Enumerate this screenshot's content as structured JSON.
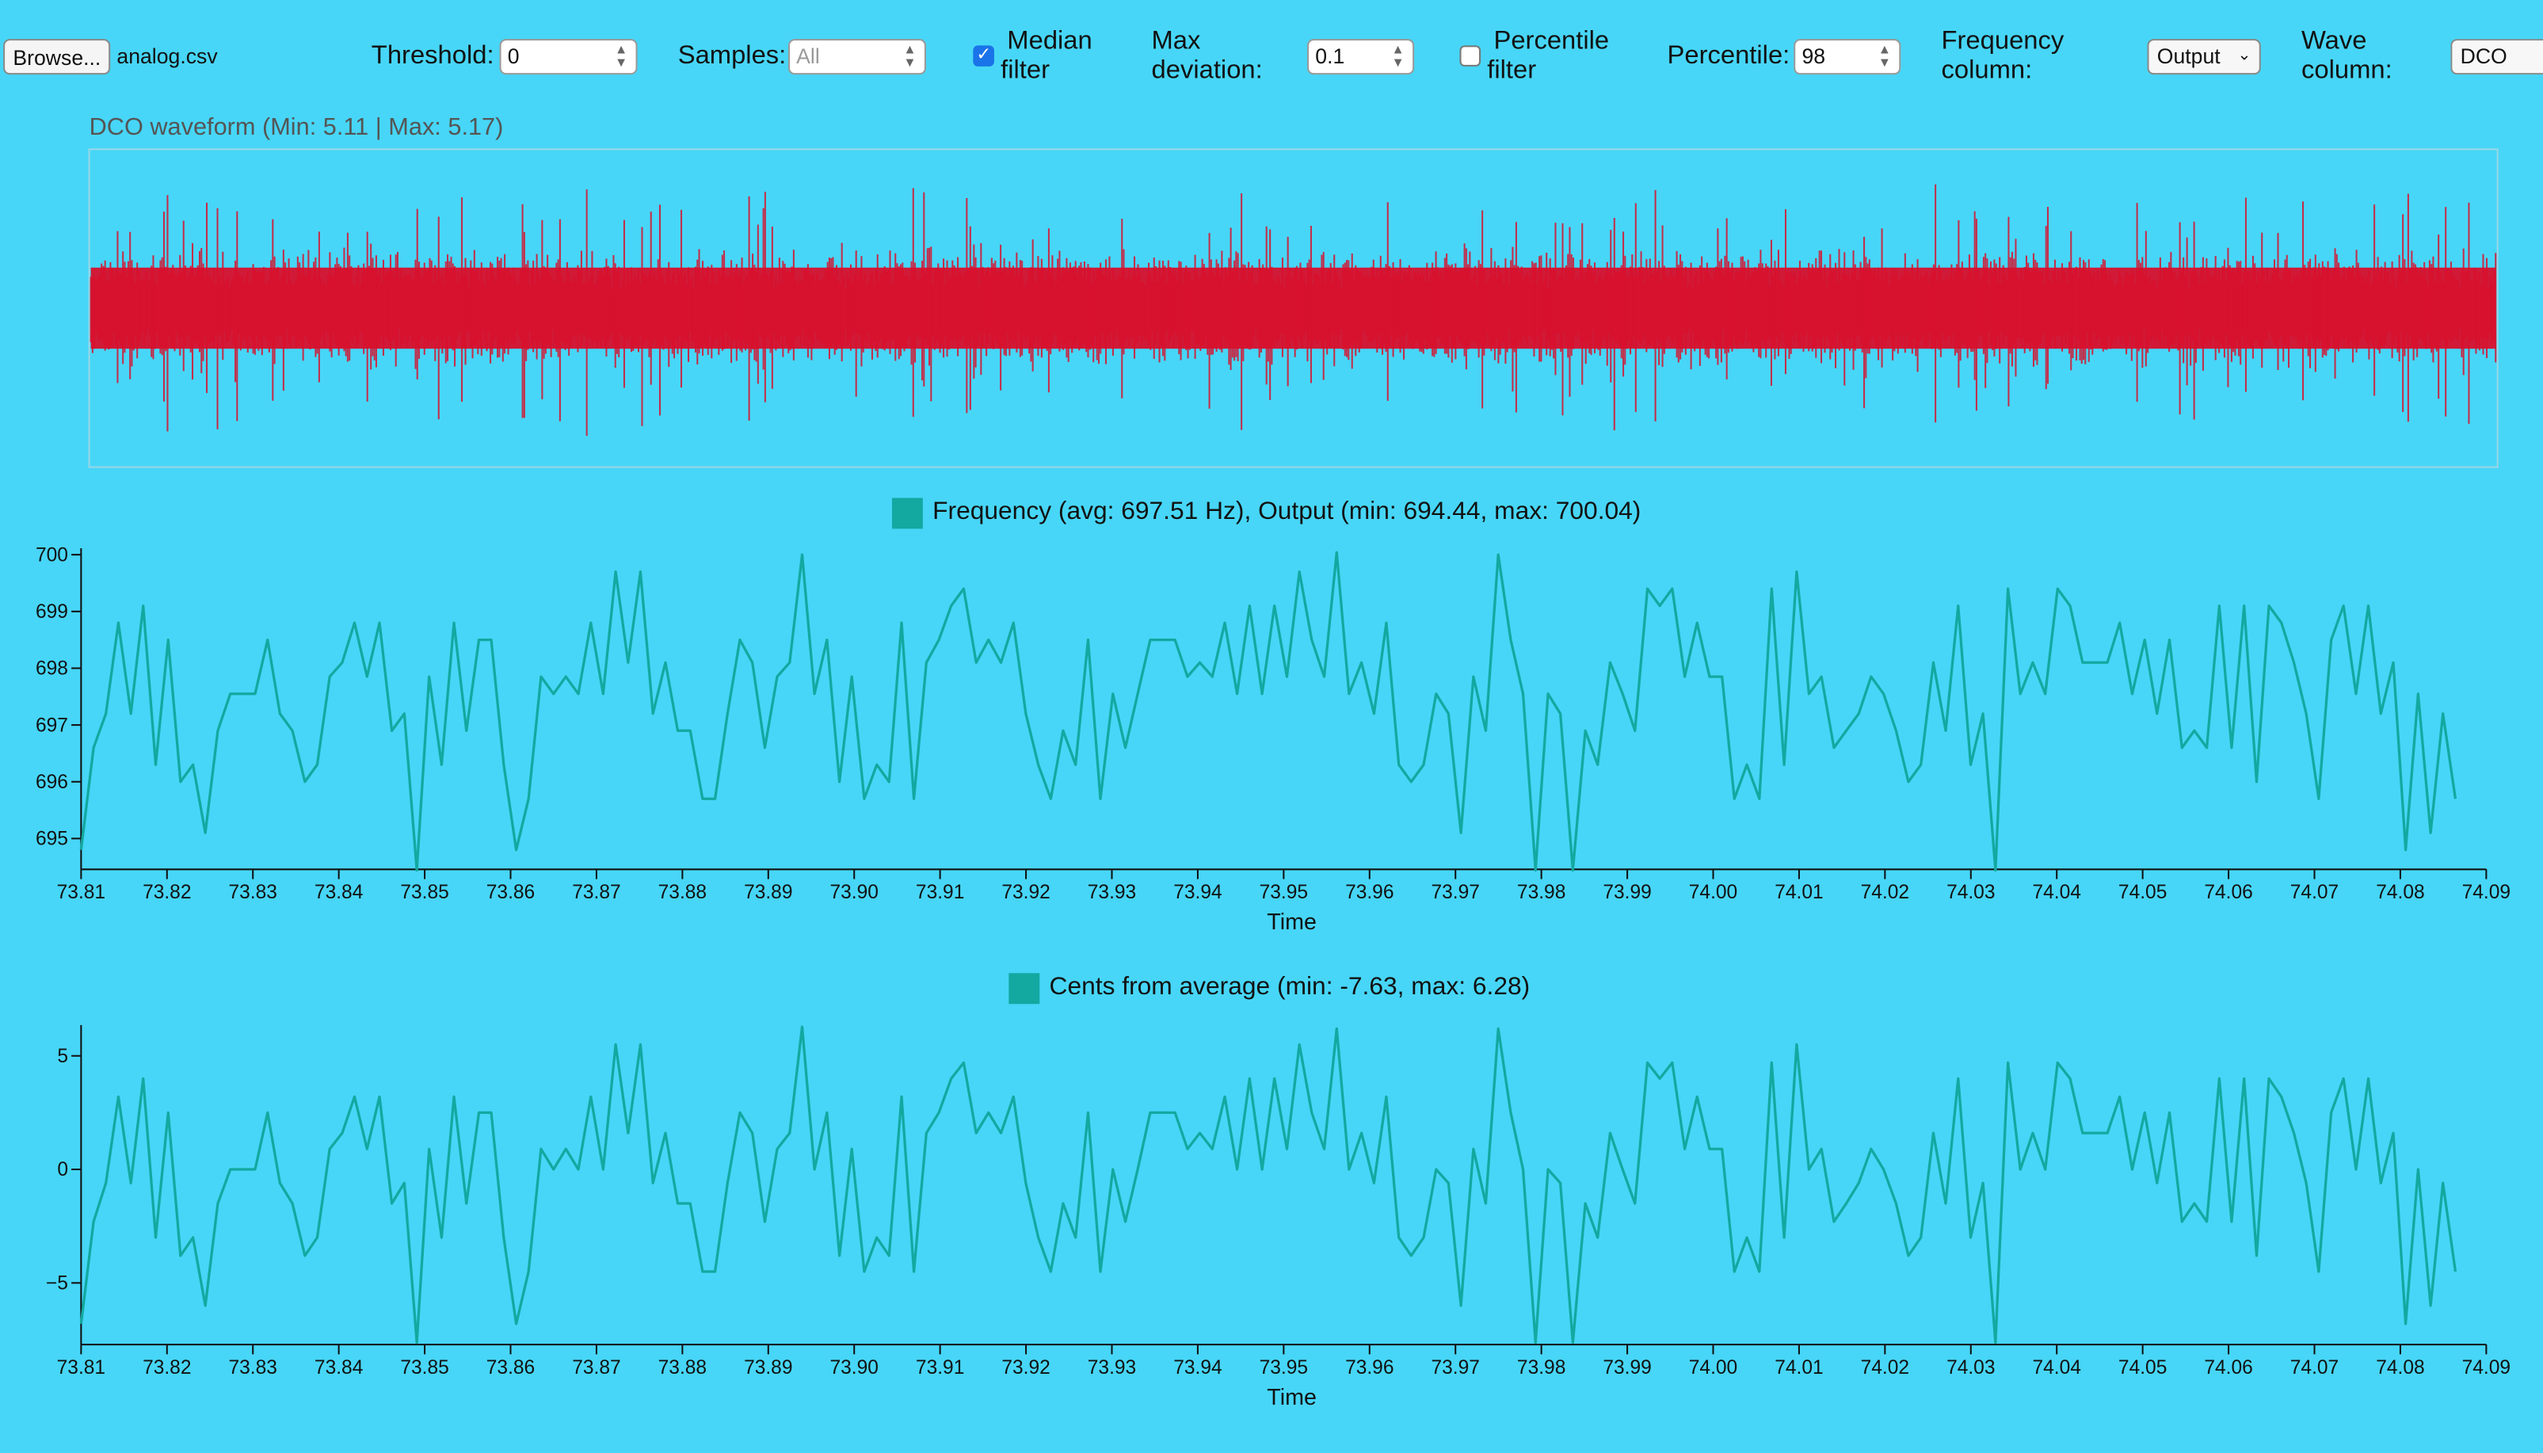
{
  "toolbar": {
    "browse_label": "Browse...",
    "file_name": "analog.csv",
    "threshold_label": "Threshold:",
    "threshold_value": "0",
    "samples_label": "Samples:",
    "samples_value": "All",
    "median_label_1": "Median",
    "median_label_2": "filter",
    "max_dev_label_1": "Max",
    "max_dev_label_2": "deviation:",
    "max_dev_value": "0.1",
    "percentile_filter_label_1": "Percentile",
    "percentile_filter_label_2": "filter",
    "percentile_label": "Percentile:",
    "percentile_value": "98",
    "freq_col_label_1": "Frequency",
    "freq_col_label_2": "column:",
    "freq_col_value": "Output",
    "wave_col_label_1": "Wave",
    "wave_col_label_2": "column:",
    "wave_col_value": "DCO",
    "median_checked": true,
    "percentile_checked": false
  },
  "waveform": {
    "title": "DCO waveform (Min: 5.11  |  Max: 5.17)",
    "color": "#d8102c",
    "min": 5.11,
    "max": 5.17
  },
  "frequency_chart": {
    "legend": "Frequency (avg: 697.51 Hz), Output (min: 694.44, max: 700.04)",
    "color": "#13a8a0",
    "xlabel": "Time",
    "yticks": [
      "700",
      "699",
      "698",
      "697",
      "696",
      "695"
    ],
    "xticks": [
      "73.81",
      "73.82",
      "73.83",
      "73.84",
      "73.85",
      "73.86",
      "73.87",
      "73.88",
      "73.89",
      "73.90",
      "73.91",
      "73.92",
      "73.93",
      "73.94",
      "73.95",
      "73.96",
      "73.97",
      "73.98",
      "73.99",
      "74.00",
      "74.01",
      "74.02",
      "74.03",
      "74.04",
      "74.05",
      "74.06",
      "74.07",
      "74.08",
      "74.09"
    ]
  },
  "cents_chart": {
    "legend": "Cents from average (min: -7.63, max: 6.28)",
    "color": "#13a8a0",
    "xlabel": "Time",
    "yticks": [
      "5",
      "0",
      "−5"
    ],
    "xticks": [
      "73.81",
      "73.82",
      "73.83",
      "73.84",
      "73.85",
      "73.86",
      "73.87",
      "73.88",
      "73.89",
      "73.90",
      "73.91",
      "73.92",
      "73.93",
      "73.94",
      "73.95",
      "73.96",
      "73.97",
      "73.98",
      "73.99",
      "74.00",
      "74.01",
      "74.02",
      "74.03",
      "74.04",
      "74.05",
      "74.06",
      "74.07",
      "74.08",
      "74.09"
    ]
  },
  "chart_data": [
    {
      "type": "line",
      "title": "Frequency (avg: 697.51 Hz), Output (min: 694.44, max: 700.04)",
      "xlabel": "Time",
      "ylabel": "",
      "xlim": [
        73.81,
        74.09
      ],
      "ylim": [
        694.44,
        700.04
      ],
      "series": [
        {
          "name": "Frequency",
          "values": [
            694.8,
            696.6,
            697.2,
            698.8,
            697.2,
            699.1,
            696.3,
            698.5,
            696.0,
            696.3,
            695.1,
            696.9,
            697.55,
            697.55,
            697.55,
            698.5,
            697.2,
            696.9,
            696.0,
            696.3,
            697.85,
            698.1,
            698.8,
            697.85,
            698.8,
            696.9,
            697.2,
            694.44,
            697.85,
            696.3,
            698.8,
            696.9,
            698.5,
            698.5,
            696.3,
            694.8,
            695.7,
            697.85,
            697.55,
            697.85,
            697.55,
            698.8,
            697.55,
            699.7,
            698.1,
            699.7,
            697.2,
            698.1,
            696.9,
            696.9,
            695.7,
            695.7,
            697.2,
            698.5,
            698.1,
            696.6,
            697.85,
            698.1,
            700.0,
            697.55,
            698.5,
            696.0,
            697.85,
            695.7,
            696.3,
            696.0,
            698.8,
            695.7,
            698.1,
            698.5,
            699.1,
            699.4,
            698.1,
            698.5,
            698.1,
            698.8,
            697.2,
            696.3,
            695.7,
            696.9,
            696.3,
            698.5,
            695.7,
            697.55,
            696.6,
            697.55,
            698.5,
            698.5,
            698.5,
            697.85,
            698.1,
            697.85,
            698.8,
            697.55,
            699.1,
            697.55,
            699.1,
            697.85,
            699.7,
            698.5,
            697.85,
            700.04,
            697.55,
            698.1,
            697.2,
            698.8,
            696.3,
            696.0,
            696.3,
            697.55,
            697.2,
            695.1,
            697.85,
            696.9,
            700.0,
            698.5,
            697.55,
            694.44,
            697.55,
            697.2,
            694.44,
            696.9,
            696.3,
            698.1,
            697.55,
            696.9,
            699.4,
            699.1,
            699.4,
            697.85,
            698.8,
            697.85,
            697.85,
            695.7,
            696.3,
            695.7,
            699.4,
            696.3,
            699.7,
            697.55,
            697.85,
            696.6,
            696.9,
            697.2,
            697.85,
            697.55,
            696.9,
            696.0,
            696.3,
            698.1,
            696.9,
            699.1,
            696.3,
            697.2,
            694.44,
            699.4,
            697.55,
            698.1,
            697.55,
            699.4,
            699.1,
            698.1,
            698.1,
            698.1,
            698.8,
            697.55,
            698.5,
            697.2,
            698.5,
            696.6,
            696.9,
            696.6,
            699.1,
            696.6,
            699.1,
            696.0,
            699.1,
            698.8,
            698.1,
            697.2,
            695.7,
            698.5,
            699.1,
            697.55,
            699.1,
            697.2,
            698.1,
            694.8,
            697.55,
            695.1,
            697.2,
            695.7
          ]
        }
      ]
    },
    {
      "type": "line",
      "title": "Cents from average (min: -7.63, max: 6.28)",
      "xlabel": "Time",
      "ylabel": "",
      "xlim": [
        73.81,
        74.09
      ],
      "ylim": [
        -7.63,
        6.28
      ],
      "series": [
        {
          "name": "Cents from average",
          "values": [
            -6.8,
            -2.3,
            -0.6,
            3.2,
            -0.6,
            4.0,
            -3.0,
            2.5,
            -3.8,
            -3.0,
            -6.0,
            -1.5,
            0.0,
            0.0,
            0.0,
            2.5,
            -0.6,
            -1.5,
            -3.8,
            -3.0,
            0.9,
            1.6,
            3.2,
            0.9,
            3.2,
            -1.5,
            -0.6,
            -7.63,
            0.9,
            -3.0,
            3.2,
            -1.5,
            2.5,
            2.5,
            -3.0,
            -6.8,
            -4.5,
            0.9,
            0.0,
            0.9,
            0.0,
            3.2,
            0.0,
            5.5,
            1.6,
            5.5,
            -0.6,
            1.6,
            -1.5,
            -1.5,
            -4.5,
            -4.5,
            -0.6,
            2.5,
            1.6,
            -2.3,
            0.9,
            1.6,
            6.28,
            0.0,
            2.5,
            -3.8,
            0.9,
            -4.5,
            -3.0,
            -3.8,
            3.2,
            -4.5,
            1.6,
            2.5,
            4.0,
            4.7,
            1.6,
            2.5,
            1.6,
            3.2,
            -0.6,
            -3.0,
            -4.5,
            -1.5,
            -3.0,
            2.5,
            -4.5,
            0.0,
            -2.3,
            0.0,
            2.5,
            2.5,
            2.5,
            0.9,
            1.6,
            0.9,
            3.2,
            0.0,
            4.0,
            0.0,
            4.0,
            0.9,
            5.5,
            2.5,
            0.9,
            6.2,
            0.0,
            1.6,
            -0.6,
            3.2,
            -3.0,
            -3.8,
            -3.0,
            0.0,
            -0.6,
            -6.0,
            0.9,
            -1.5,
            6.2,
            2.5,
            0.0,
            -7.63,
            0.0,
            -0.6,
            -7.63,
            -1.5,
            -3.0,
            1.6,
            0.0,
            -1.5,
            4.7,
            4.0,
            4.7,
            0.9,
            3.2,
            0.9,
            0.9,
            -4.5,
            -3.0,
            -4.5,
            4.7,
            -3.0,
            5.5,
            0.0,
            0.9,
            -2.3,
            -1.5,
            -0.6,
            0.9,
            0.0,
            -1.5,
            -3.8,
            -3.0,
            1.6,
            -1.5,
            4.0,
            -3.0,
            -0.6,
            -7.63,
            4.7,
            0.0,
            1.6,
            0.0,
            4.7,
            4.0,
            1.6,
            1.6,
            1.6,
            3.2,
            0.0,
            2.5,
            -0.6,
            2.5,
            -2.3,
            -1.5,
            -2.3,
            4.0,
            -2.3,
            4.0,
            -3.8,
            4.0,
            3.2,
            1.6,
            -0.6,
            -4.5,
            2.5,
            4.0,
            0.0,
            4.0,
            -0.6,
            1.6,
            -6.8,
            0.0,
            -6.0,
            -0.6,
            -4.5
          ]
        }
      ]
    }
  ]
}
